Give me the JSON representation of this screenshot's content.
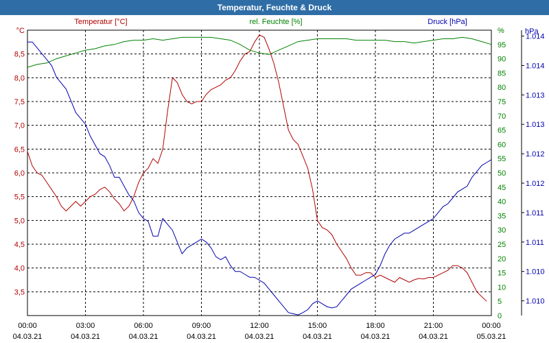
{
  "window": {
    "title": "Temperatur, Feuchte & Druck"
  },
  "colors": {
    "temperature": "#b00000",
    "humidity": "#008000",
    "pressure": "#0000b0",
    "titlebar": "#2f6da6"
  },
  "chart_data": {
    "type": "line",
    "title": "Temperatur, Feuchte & Druck",
    "xlabel": "",
    "x_ticks": [
      {
        "time": "00:00",
        "date": "04.03.21"
      },
      {
        "time": "03:00",
        "date": "04.03.21"
      },
      {
        "time": "06:00",
        "date": "04.03.21"
      },
      {
        "time": "09:00",
        "date": "04.03.21"
      },
      {
        "time": "12:00",
        "date": "04.03.21"
      },
      {
        "time": "15:00",
        "date": "04.03.21"
      },
      {
        "time": "18:00",
        "date": "04.03.21"
      },
      {
        "time": "21:00",
        "date": "04.03.21"
      },
      {
        "time": "00:00",
        "date": "05.03.21"
      }
    ],
    "x_range_hours": [
      0,
      24
    ],
    "axes": {
      "temperature": {
        "label": "Temperatur [°C]",
        "unit": "°C",
        "range": [
          3.0,
          9.0
        ],
        "ticks": [
          "3,5",
          "4,0",
          "4,5",
          "5,0",
          "5,5",
          "6,0",
          "6,5",
          "7,0",
          "7,5",
          "8,0",
          "8,5"
        ]
      },
      "humidity": {
        "label": "rel. Feuchte [%]",
        "unit": "%",
        "range": [
          0,
          100
        ],
        "ticks": [
          "0",
          "5",
          "10",
          "15",
          "20",
          "25",
          "30",
          "35",
          "40",
          "45",
          "50",
          "55",
          "60",
          "65",
          "70",
          "75",
          "80",
          "85",
          "90",
          "95"
        ]
      },
      "pressure": {
        "label": "Druck [hPa]",
        "unit": "hPa",
        "range": [
          1009.75,
          1014.6
        ],
        "ticks": [
          {
            "value": 1010.0,
            "label": "1.010"
          },
          {
            "value": 1010.5,
            "label": "1.010"
          },
          {
            "value": 1011.0,
            "label": "1.011"
          },
          {
            "value": 1011.5,
            "label": "1.011"
          },
          {
            "value": 1012.0,
            "label": "1.012"
          },
          {
            "value": 1012.5,
            "label": "1.012"
          },
          {
            "value": 1013.0,
            "label": "1.013"
          },
          {
            "value": 1013.5,
            "label": "1.013"
          },
          {
            "value": 1014.0,
            "label": "1.014"
          },
          {
            "value": 1014.5,
            "label": "1.014"
          }
        ]
      }
    },
    "series": [
      {
        "name": "Temperatur [°C]",
        "axis": "temperature",
        "points": [
          [
            0,
            6.45
          ],
          [
            0.25,
            6.15
          ],
          [
            0.5,
            6.0
          ],
          [
            0.75,
            5.95
          ],
          [
            1.0,
            5.8
          ],
          [
            1.25,
            5.65
          ],
          [
            1.5,
            5.5
          ],
          [
            1.75,
            5.3
          ],
          [
            2.0,
            5.2
          ],
          [
            2.25,
            5.3
          ],
          [
            2.5,
            5.4
          ],
          [
            2.75,
            5.3
          ],
          [
            3.0,
            5.4
          ],
          [
            3.25,
            5.5
          ],
          [
            3.5,
            5.55
          ],
          [
            3.75,
            5.65
          ],
          [
            4.0,
            5.7
          ],
          [
            4.25,
            5.6
          ],
          [
            4.5,
            5.45
          ],
          [
            4.75,
            5.35
          ],
          [
            5.0,
            5.2
          ],
          [
            5.25,
            5.3
          ],
          [
            5.5,
            5.5
          ],
          [
            5.75,
            5.8
          ],
          [
            6.0,
            6.0
          ],
          [
            6.25,
            6.1
          ],
          [
            6.5,
            6.3
          ],
          [
            6.75,
            6.2
          ],
          [
            7.0,
            6.5
          ],
          [
            7.25,
            7.3
          ],
          [
            7.5,
            8.0
          ],
          [
            7.75,
            7.9
          ],
          [
            8.0,
            7.65
          ],
          [
            8.25,
            7.5
          ],
          [
            8.5,
            7.45
          ],
          [
            8.75,
            7.5
          ],
          [
            9.0,
            7.5
          ],
          [
            9.25,
            7.65
          ],
          [
            9.5,
            7.75
          ],
          [
            9.75,
            7.8
          ],
          [
            10.0,
            7.85
          ],
          [
            10.25,
            7.95
          ],
          [
            10.5,
            8.0
          ],
          [
            10.75,
            8.15
          ],
          [
            11.0,
            8.35
          ],
          [
            11.25,
            8.5
          ],
          [
            11.5,
            8.55
          ],
          [
            11.75,
            8.75
          ],
          [
            12.0,
            8.9
          ],
          [
            12.25,
            8.85
          ],
          [
            12.5,
            8.6
          ],
          [
            12.75,
            8.3
          ],
          [
            13.0,
            7.9
          ],
          [
            13.25,
            7.4
          ],
          [
            13.5,
            6.9
          ],
          [
            13.75,
            6.7
          ],
          [
            14.0,
            6.6
          ],
          [
            14.25,
            6.35
          ],
          [
            14.5,
            6.1
          ],
          [
            14.75,
            5.65
          ],
          [
            15.0,
            5.0
          ],
          [
            15.25,
            4.85
          ],
          [
            15.5,
            4.8
          ],
          [
            15.75,
            4.7
          ],
          [
            16.0,
            4.5
          ],
          [
            16.25,
            4.35
          ],
          [
            16.5,
            4.2
          ],
          [
            16.75,
            4.0
          ],
          [
            17.0,
            3.85
          ],
          [
            17.25,
            3.85
          ],
          [
            17.5,
            3.9
          ],
          [
            17.75,
            3.9
          ],
          [
            18.0,
            3.8
          ],
          [
            18.25,
            3.85
          ],
          [
            18.5,
            3.8
          ],
          [
            18.75,
            3.75
          ],
          [
            19.0,
            3.7
          ],
          [
            19.25,
            3.8
          ],
          [
            19.5,
            3.75
          ],
          [
            19.75,
            3.7
          ],
          [
            20.0,
            3.75
          ],
          [
            20.25,
            3.78
          ],
          [
            20.5,
            3.77
          ],
          [
            20.75,
            3.8
          ],
          [
            21.0,
            3.8
          ],
          [
            21.25,
            3.85
          ],
          [
            21.5,
            3.9
          ],
          [
            21.75,
            3.95
          ],
          [
            22.0,
            4.05
          ],
          [
            22.25,
            4.05
          ],
          [
            22.5,
            4.0
          ],
          [
            22.75,
            3.9
          ],
          [
            23.0,
            3.7
          ],
          [
            23.25,
            3.5
          ],
          [
            23.5,
            3.4
          ],
          [
            23.75,
            3.3
          ]
        ]
      },
      {
        "name": "rel. Feuchte [%]",
        "axis": "humidity",
        "points": [
          [
            0,
            87
          ],
          [
            0.5,
            88
          ],
          [
            1.0,
            88.5
          ],
          [
            1.5,
            90
          ],
          [
            2.0,
            91
          ],
          [
            2.5,
            92
          ],
          [
            3.0,
            93
          ],
          [
            3.5,
            93.5
          ],
          [
            4.0,
            94.5
          ],
          [
            4.5,
            95
          ],
          [
            5.0,
            96
          ],
          [
            5.5,
            96.5
          ],
          [
            6.0,
            96.5
          ],
          [
            6.5,
            97
          ],
          [
            7.0,
            96.5
          ],
          [
            7.5,
            97
          ],
          [
            8.0,
            97.5
          ],
          [
            8.5,
            97.5
          ],
          [
            9.0,
            97.5
          ],
          [
            9.5,
            97.5
          ],
          [
            10.0,
            97
          ],
          [
            10.5,
            96.5
          ],
          [
            11.0,
            95
          ],
          [
            11.5,
            93
          ],
          [
            12.0,
            92
          ],
          [
            12.5,
            91.5
          ],
          [
            13.0,
            93
          ],
          [
            13.5,
            94.5
          ],
          [
            14.0,
            96
          ],
          [
            14.5,
            96.5
          ],
          [
            15.0,
            97
          ],
          [
            15.5,
            97
          ],
          [
            16.0,
            97
          ],
          [
            16.5,
            97
          ],
          [
            17.0,
            96.5
          ],
          [
            17.5,
            96.5
          ],
          [
            18.0,
            96.5
          ],
          [
            18.5,
            96.5
          ],
          [
            19.0,
            96
          ],
          [
            19.5,
            96
          ],
          [
            20.0,
            95.5
          ],
          [
            20.5,
            96
          ],
          [
            21.0,
            96.5
          ],
          [
            21.5,
            97
          ],
          [
            22.0,
            97
          ],
          [
            22.5,
            97.5
          ],
          [
            23.0,
            97
          ],
          [
            23.5,
            96
          ],
          [
            24.0,
            95
          ]
        ]
      },
      {
        "name": "Druck [hPa]",
        "axis": "pressure",
        "points": [
          [
            0,
            1014.4
          ],
          [
            0.25,
            1014.4
          ],
          [
            0.5,
            1014.3
          ],
          [
            0.75,
            1014.2
          ],
          [
            1.0,
            1014.1
          ],
          [
            1.25,
            1014.0
          ],
          [
            1.5,
            1013.8
          ],
          [
            1.75,
            1013.7
          ],
          [
            2.0,
            1013.6
          ],
          [
            2.25,
            1013.4
          ],
          [
            2.5,
            1013.2
          ],
          [
            2.75,
            1013.1
          ],
          [
            3.0,
            1013.0
          ],
          [
            3.25,
            1012.8
          ],
          [
            3.5,
            1012.65
          ],
          [
            3.75,
            1012.5
          ],
          [
            4.0,
            1012.45
          ],
          [
            4.25,
            1012.3
          ],
          [
            4.5,
            1012.1
          ],
          [
            4.75,
            1012.1
          ],
          [
            5.0,
            1011.95
          ],
          [
            5.25,
            1011.8
          ],
          [
            5.5,
            1011.7
          ],
          [
            5.75,
            1011.5
          ],
          [
            6.0,
            1011.4
          ],
          [
            6.25,
            1011.35
          ],
          [
            6.5,
            1011.1
          ],
          [
            6.75,
            1011.1
          ],
          [
            7.0,
            1011.4
          ],
          [
            7.25,
            1011.3
          ],
          [
            7.5,
            1011.2
          ],
          [
            7.75,
            1011.0
          ],
          [
            8.0,
            1010.8
          ],
          [
            8.25,
            1010.9
          ],
          [
            8.5,
            1010.95
          ],
          [
            8.75,
            1011.0
          ],
          [
            9.0,
            1011.05
          ],
          [
            9.25,
            1011.0
          ],
          [
            9.5,
            1010.9
          ],
          [
            9.75,
            1010.75
          ],
          [
            10.0,
            1010.7
          ],
          [
            10.25,
            1010.75
          ],
          [
            10.5,
            1010.6
          ],
          [
            10.75,
            1010.5
          ],
          [
            11.0,
            1010.5
          ],
          [
            11.25,
            1010.45
          ],
          [
            11.5,
            1010.4
          ],
          [
            11.75,
            1010.4
          ],
          [
            12.0,
            1010.35
          ],
          [
            12.25,
            1010.3
          ],
          [
            12.5,
            1010.2
          ],
          [
            12.75,
            1010.1
          ],
          [
            13.0,
            1010.0
          ],
          [
            13.25,
            1009.9
          ],
          [
            13.5,
            1009.8
          ],
          [
            13.75,
            1009.78
          ],
          [
            14.0,
            1009.76
          ],
          [
            14.25,
            1009.8
          ],
          [
            14.5,
            1009.85
          ],
          [
            14.75,
            1009.95
          ],
          [
            15.0,
            1010.0
          ],
          [
            15.25,
            1009.95
          ],
          [
            15.5,
            1009.9
          ],
          [
            15.75,
            1009.88
          ],
          [
            16.0,
            1009.9
          ],
          [
            16.25,
            1010.0
          ],
          [
            16.5,
            1010.1
          ],
          [
            16.75,
            1010.2
          ],
          [
            17.0,
            1010.25
          ],
          [
            17.25,
            1010.3
          ],
          [
            17.5,
            1010.35
          ],
          [
            17.75,
            1010.4
          ],
          [
            18.0,
            1010.45
          ],
          [
            18.25,
            1010.6
          ],
          [
            18.5,
            1010.8
          ],
          [
            18.75,
            1010.95
          ],
          [
            19.0,
            1011.05
          ],
          [
            19.25,
            1011.1
          ],
          [
            19.5,
            1011.15
          ],
          [
            19.75,
            1011.15
          ],
          [
            20.0,
            1011.2
          ],
          [
            20.25,
            1011.25
          ],
          [
            20.5,
            1011.3
          ],
          [
            20.75,
            1011.35
          ],
          [
            21.0,
            1011.4
          ],
          [
            21.25,
            1011.5
          ],
          [
            21.5,
            1011.6
          ],
          [
            21.75,
            1011.65
          ],
          [
            22.0,
            1011.75
          ],
          [
            22.25,
            1011.85
          ],
          [
            22.5,
            1011.9
          ],
          [
            22.75,
            1011.95
          ],
          [
            23.0,
            1012.1
          ],
          [
            23.25,
            1012.2
          ],
          [
            23.5,
            1012.3
          ],
          [
            23.75,
            1012.35
          ],
          [
            24.0,
            1012.4
          ]
        ]
      }
    ]
  }
}
